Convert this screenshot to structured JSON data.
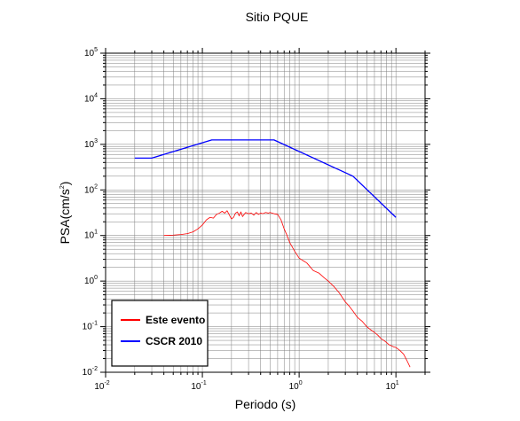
{
  "chart_data": {
    "type": "line",
    "title": "Sitio PQUE",
    "xlabel": "Periodo (s)",
    "ylabel_base": "PSA(cm/s",
    "ylabel_exp": "2",
    "ylabel_end": ")",
    "xscale": "log",
    "yscale": "log",
    "xlim": [
      0.01,
      20
    ],
    "ylim": [
      0.01,
      100000
    ],
    "grid": true,
    "legend_position": "bottom-left",
    "x_ticks": [
      {
        "base": "10",
        "exp": "-2",
        "value": 0.01
      },
      {
        "base": "10",
        "exp": "-1",
        "value": 0.1
      },
      {
        "base": "10",
        "exp": "0",
        "value": 1
      },
      {
        "base": "10",
        "exp": "1",
        "value": 10
      }
    ],
    "y_ticks": [
      {
        "base": "10",
        "exp": "-2",
        "value": 0.01
      },
      {
        "base": "10",
        "exp": "-1",
        "value": 0.1
      },
      {
        "base": "10",
        "exp": "0",
        "value": 1
      },
      {
        "base": "10",
        "exp": "1",
        "value": 10
      },
      {
        "base": "10",
        "exp": "2",
        "value": 100
      },
      {
        "base": "10",
        "exp": "3",
        "value": 1000
      },
      {
        "base": "10",
        "exp": "4",
        "value": 10000
      },
      {
        "base": "10",
        "exp": "5",
        "value": 100000
      }
    ],
    "series": [
      {
        "name": "Este evento",
        "color": "#ff0000",
        "x": [
          0.04,
          0.05,
          0.06,
          0.07,
          0.08,
          0.09,
          0.1,
          0.11,
          0.12,
          0.13,
          0.14,
          0.15,
          0.16,
          0.17,
          0.18,
          0.19,
          0.2,
          0.21,
          0.22,
          0.23,
          0.24,
          0.25,
          0.26,
          0.28,
          0.3,
          0.32,
          0.34,
          0.36,
          0.38,
          0.4,
          0.42,
          0.45,
          0.48,
          0.5,
          0.55,
          0.6,
          0.65,
          0.7,
          0.75,
          0.8,
          0.9,
          1.0,
          1.1,
          1.2,
          1.4,
          1.6,
          1.8,
          2.0,
          2.3,
          2.6,
          3.0,
          3.3,
          3.6,
          4.0,
          4.5,
          5.0,
          5.5,
          6.0,
          6.5,
          7.0,
          7.5,
          8.0,
          8.5,
          9.0,
          9.5,
          10.0,
          11.0,
          12.0,
          13.0,
          14.0
        ],
        "y": [
          10,
          10.2,
          10.5,
          11,
          12,
          14,
          17,
          22,
          25,
          24,
          29,
          31,
          34,
          31,
          35,
          28,
          23,
          25,
          31,
          33,
          27,
          33,
          26,
          32,
          30,
          31,
          28,
          32,
          29,
          31,
          30,
          32,
          31,
          32,
          30,
          29,
          22,
          14,
          10,
          7,
          4.5,
          3.2,
          2.8,
          2.5,
          1.7,
          1.5,
          1.2,
          1.0,
          0.75,
          0.55,
          0.35,
          0.28,
          0.22,
          0.16,
          0.13,
          0.1,
          0.085,
          0.075,
          0.065,
          0.055,
          0.05,
          0.045,
          0.04,
          0.038,
          0.036,
          0.035,
          0.03,
          0.025,
          0.018,
          0.013
        ]
      },
      {
        "name": "CSCR 2010",
        "color": "#0000ff",
        "x": [
          0.02,
          0.03,
          0.125,
          0.55,
          3.6,
          10.0
        ],
        "y": [
          500,
          500,
          1250,
          1250,
          200,
          25
        ]
      }
    ]
  }
}
